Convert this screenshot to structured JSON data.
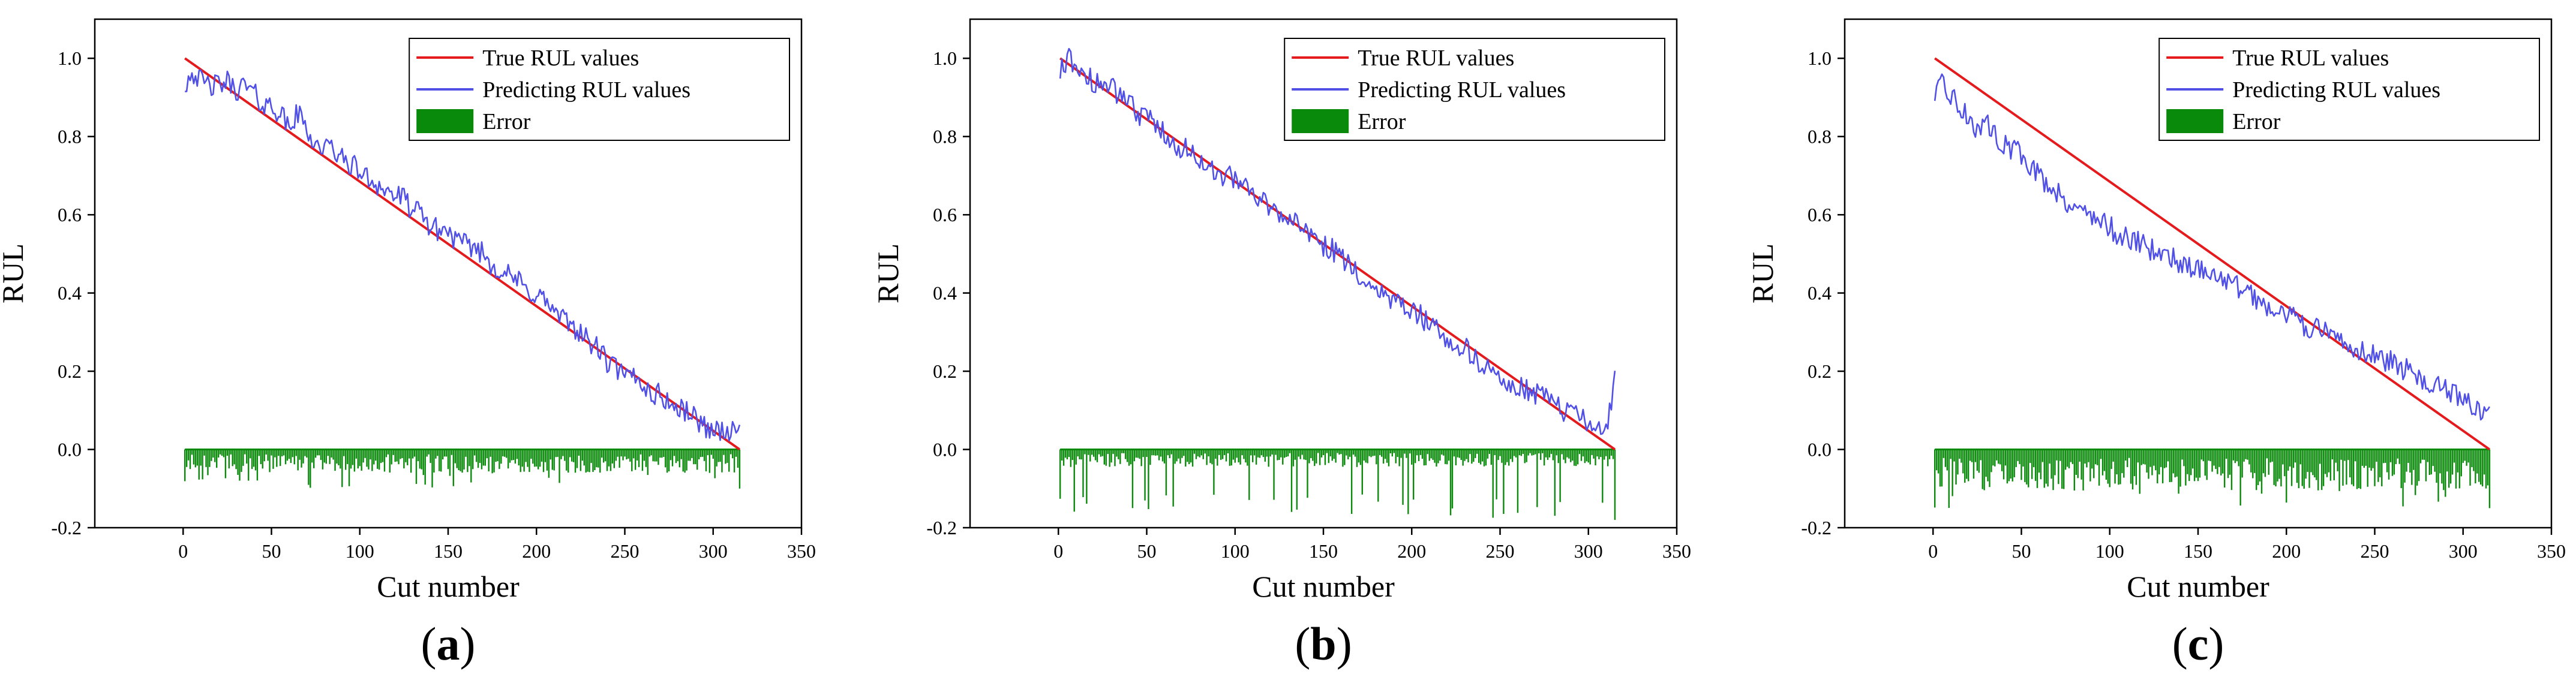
{
  "chart_data": [
    {
      "type": "line",
      "panel_label": "a",
      "xlabel": "Cut number",
      "ylabel": "RUL",
      "xlim": [
        -50,
        350
      ],
      "ylim": [
        -0.2,
        1.1
      ],
      "xticks": [
        0,
        50,
        100,
        150,
        200,
        250,
        300,
        350
      ],
      "yticks": [
        -0.2,
        0.0,
        0.2,
        0.4,
        0.6,
        0.8,
        1.0
      ],
      "legend_position": "top-right",
      "n_cuts": 315,
      "series": [
        {
          "name": "True RUL values",
          "kind": "line",
          "color": "#e41a1c",
          "x": [
            1,
            315
          ],
          "values": [
            1.0,
            0.0
          ]
        },
        {
          "name": "Predicting RUL values",
          "kind": "line",
          "color": "#5050e6",
          "x": [
            1,
            5,
            10,
            15,
            20,
            25,
            30,
            35,
            40,
            45,
            50,
            55,
            60,
            65,
            70,
            75,
            80,
            85,
            90,
            95,
            100,
            105,
            110,
            115,
            120,
            125,
            130,
            135,
            140,
            145,
            150,
            155,
            160,
            165,
            170,
            175,
            180,
            185,
            190,
            195,
            200,
            205,
            210,
            215,
            220,
            225,
            230,
            235,
            240,
            245,
            250,
            255,
            260,
            265,
            270,
            275,
            280,
            285,
            290,
            295,
            300,
            305,
            310,
            315
          ],
          "values": [
            0.93,
            0.97,
            0.94,
            0.93,
            0.93,
            0.94,
            0.92,
            0.93,
            0.91,
            0.88,
            0.88,
            0.86,
            0.82,
            0.86,
            0.82,
            0.78,
            0.77,
            0.77,
            0.74,
            0.73,
            0.71,
            0.69,
            0.68,
            0.66,
            0.65,
            0.64,
            0.61,
            0.6,
            0.57,
            0.56,
            0.56,
            0.53,
            0.52,
            0.52,
            0.5,
            0.47,
            0.46,
            0.44,
            0.43,
            0.4,
            0.4,
            0.38,
            0.35,
            0.33,
            0.32,
            0.3,
            0.27,
            0.26,
            0.22,
            0.21,
            0.18,
            0.19,
            0.17,
            0.14,
            0.14,
            0.12,
            0.1,
            0.1,
            0.08,
            0.06,
            0.05,
            0.05,
            0.04,
            0.05
          ]
        },
        {
          "name": "Error",
          "kind": "bar",
          "color": "#0a8a0a",
          "max_depth": -0.1,
          "typical_depth": -0.04
        }
      ]
    },
    {
      "type": "line",
      "panel_label": "b",
      "xlabel": "Cut number",
      "ylabel": "RUL",
      "xlim": [
        -50,
        350
      ],
      "ylim": [
        -0.2,
        1.1
      ],
      "xticks": [
        0,
        50,
        100,
        150,
        200,
        250,
        300,
        350
      ],
      "yticks": [
        -0.2,
        0.0,
        0.2,
        0.4,
        0.6,
        0.8,
        1.0
      ],
      "legend_position": "top-right",
      "n_cuts": 315,
      "series": [
        {
          "name": "True RUL values",
          "kind": "line",
          "color": "#e41a1c",
          "x": [
            1,
            315
          ],
          "values": [
            1.0,
            0.0
          ]
        },
        {
          "name": "Predicting RUL values",
          "kind": "line",
          "color": "#5050e6",
          "x": [
            1,
            5,
            10,
            15,
            20,
            25,
            30,
            35,
            40,
            45,
            50,
            55,
            60,
            65,
            70,
            75,
            80,
            85,
            90,
            95,
            100,
            105,
            110,
            115,
            120,
            125,
            130,
            135,
            140,
            145,
            150,
            155,
            160,
            165,
            170,
            175,
            180,
            185,
            190,
            195,
            200,
            205,
            210,
            215,
            220,
            225,
            230,
            235,
            240,
            245,
            250,
            255,
            260,
            265,
            270,
            275,
            280,
            285,
            290,
            295,
            300,
            305,
            310,
            315
          ],
          "values": [
            0.96,
            1.0,
            0.98,
            0.96,
            0.94,
            0.93,
            0.92,
            0.91,
            0.88,
            0.86,
            0.85,
            0.83,
            0.81,
            0.79,
            0.77,
            0.76,
            0.74,
            0.73,
            0.71,
            0.7,
            0.69,
            0.67,
            0.65,
            0.64,
            0.62,
            0.61,
            0.6,
            0.57,
            0.55,
            0.54,
            0.52,
            0.51,
            0.49,
            0.47,
            0.45,
            0.43,
            0.41,
            0.4,
            0.38,
            0.36,
            0.35,
            0.34,
            0.32,
            0.3,
            0.29,
            0.27,
            0.26,
            0.24,
            0.22,
            0.2,
            0.18,
            0.17,
            0.16,
            0.15,
            0.14,
            0.13,
            0.11,
            0.1,
            0.09,
            0.08,
            0.07,
            0.06,
            0.05,
            0.18
          ]
        },
        {
          "name": "Error",
          "kind": "bar",
          "color": "#0a8a0a",
          "max_depth": -0.18,
          "typical_depth": -0.03
        }
      ]
    },
    {
      "type": "line",
      "panel_label": "c",
      "xlabel": "Cut number",
      "ylabel": "RUL",
      "xlim": [
        -50,
        350
      ],
      "ylim": [
        -0.2,
        1.1
      ],
      "xticks": [
        0,
        50,
        100,
        150,
        200,
        250,
        300,
        350
      ],
      "yticks": [
        -0.2,
        0.0,
        0.2,
        0.4,
        0.6,
        0.8,
        1.0
      ],
      "legend_position": "top-right",
      "n_cuts": 315,
      "series": [
        {
          "name": "True RUL values",
          "kind": "line",
          "color": "#e41a1c",
          "x": [
            1,
            315
          ],
          "values": [
            1.0,
            0.0
          ]
        },
        {
          "name": "Predicting RUL values",
          "kind": "line",
          "color": "#5050e6",
          "x": [
            1,
            5,
            10,
            15,
            20,
            25,
            30,
            35,
            40,
            45,
            50,
            55,
            60,
            65,
            70,
            75,
            80,
            85,
            90,
            95,
            100,
            105,
            110,
            115,
            120,
            125,
            130,
            135,
            140,
            145,
            150,
            155,
            160,
            165,
            170,
            175,
            180,
            185,
            190,
            195,
            200,
            205,
            210,
            215,
            220,
            225,
            230,
            235,
            240,
            245,
            250,
            255,
            260,
            265,
            270,
            275,
            280,
            285,
            290,
            295,
            300,
            305,
            310,
            315
          ],
          "values": [
            0.9,
            0.93,
            0.91,
            0.87,
            0.85,
            0.82,
            0.83,
            0.81,
            0.78,
            0.77,
            0.75,
            0.73,
            0.7,
            0.68,
            0.66,
            0.64,
            0.62,
            0.61,
            0.6,
            0.58,
            0.57,
            0.55,
            0.54,
            0.53,
            0.52,
            0.51,
            0.5,
            0.49,
            0.48,
            0.47,
            0.46,
            0.46,
            0.45,
            0.43,
            0.42,
            0.41,
            0.39,
            0.38,
            0.37,
            0.36,
            0.35,
            0.33,
            0.32,
            0.31,
            0.3,
            0.29,
            0.28,
            0.27,
            0.26,
            0.25,
            0.24,
            0.23,
            0.22,
            0.21,
            0.2,
            0.19,
            0.17,
            0.16,
            0.15,
            0.14,
            0.12,
            0.11,
            0.1,
            0.08
          ]
        },
        {
          "name": "Error",
          "kind": "bar",
          "color": "#0a8a0a",
          "max_depth": -0.15,
          "typical_depth": -0.07
        }
      ]
    }
  ]
}
